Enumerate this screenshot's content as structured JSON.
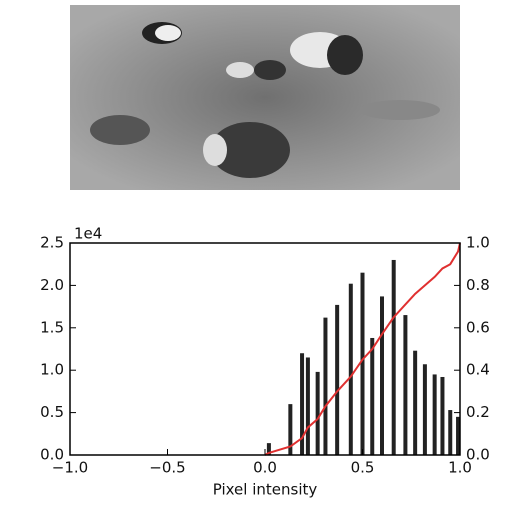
{
  "chart_data": {
    "type": "histogram",
    "xlabel": "Pixel intensity",
    "offset_text": "1e4",
    "xlim": [
      -1,
      1
    ],
    "xticks": [
      {
        "value": -1,
        "label": "−1.0"
      },
      {
        "value": -0.5,
        "label": "−0.5"
      },
      {
        "value": 0,
        "label": "0.0"
      },
      0.5,
      {
        "value": 1,
        "label": "1.0"
      }
    ],
    "ylim": [
      0,
      2.5
    ],
    "yticks": [
      {
        "value": 0,
        "label": "0.0"
      },
      0.5,
      {
        "value": 1,
        "label": "1.0"
      },
      1.5,
      {
        "value": 2,
        "label": "2.0"
      },
      2.5
    ],
    "y2lim": [
      0,
      1
    ],
    "y2ticks": [
      {
        "value": 0,
        "label": "0.0"
      },
      0.2,
      0.4,
      0.6,
      0.8,
      {
        "value": 1,
        "label": "1.0"
      }
    ],
    "series": [
      {
        "type": "bar",
        "color": "#222222",
        "x": [
          0.02,
          0.13,
          0.19,
          0.22,
          0.27,
          0.31,
          0.37,
          0.44,
          0.5,
          0.55,
          0.6,
          0.66,
          0.72,
          0.77,
          0.82,
          0.87,
          0.91,
          0.95,
          0.99
        ],
        "values": [
          0.14,
          0.6,
          1.2,
          1.15,
          0.98,
          1.62,
          1.77,
          2.02,
          2.15,
          1.38,
          1.87,
          2.3,
          1.65,
          1.23,
          1.07,
          0.95,
          0.92,
          0.53,
          0.45
        ]
      },
      {
        "type": "line",
        "color": "#e03030",
        "axis": "y2",
        "x": [
          0,
          0.02,
          0.13,
          0.19,
          0.22,
          0.27,
          0.31,
          0.37,
          0.44,
          0.5,
          0.55,
          0.6,
          0.66,
          0.72,
          0.77,
          0.82,
          0.87,
          0.91,
          0.95,
          0.99,
          1
        ],
        "values": [
          0,
          0.01,
          0.04,
          0.08,
          0.13,
          0.17,
          0.23,
          0.3,
          0.37,
          0.45,
          0.5,
          0.57,
          0.65,
          0.71,
          0.76,
          0.8,
          0.84,
          0.88,
          0.9,
          0.96,
          1
        ]
      }
    ]
  }
}
